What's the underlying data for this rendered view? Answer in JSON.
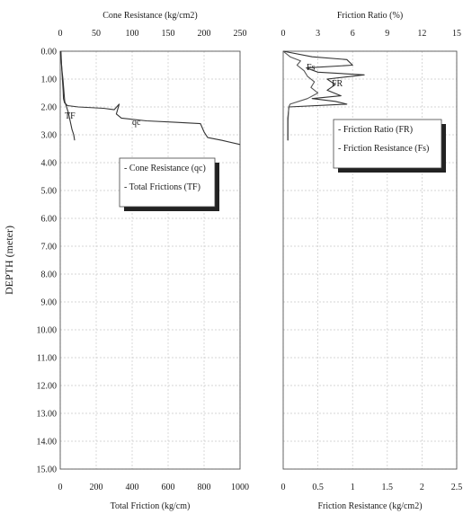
{
  "chart_data": [
    {
      "type": "line",
      "panel": "left",
      "y": {
        "label": "DEPTH (meter)",
        "ticks": [
          "0.00",
          "1.00",
          "2.00",
          "3.00",
          "4.00",
          "5.00",
          "6.00",
          "7.00",
          "8.00",
          "9.00",
          "10.00",
          "11.00",
          "12.00",
          "13.00",
          "14.00",
          "15.00"
        ],
        "ylim": [
          0,
          15
        ],
        "inverted": true
      },
      "x_top": {
        "label": "Cone Resistance (kg/cm2)",
        "ticks": [
          "0",
          "50",
          "100",
          "150",
          "200",
          "250"
        ],
        "xlim": [
          0,
          250
        ]
      },
      "x_bottom": {
        "label": "Total Friction (kg/cm)",
        "ticks": [
          "0",
          "200",
          "400",
          "600",
          "800",
          "1000"
        ],
        "xlim": [
          0,
          1000
        ]
      },
      "grid": true,
      "legend": {
        "placement": "center-left",
        "entries": [
          "- Cone Resistance (qc)",
          "- Total Frictions (TF)"
        ]
      },
      "series": [
        {
          "name": "qc",
          "axis": "top",
          "label": "qc",
          "color": "#333333",
          "points": [
            [
              1,
              0
            ],
            [
              1.5,
              0.3
            ],
            [
              2,
              0.6
            ],
            [
              3,
              1.0
            ],
            [
              4,
              1.4
            ],
            [
              4.5,
              1.7
            ],
            [
              6,
              1.85
            ],
            [
              10,
              1.95
            ],
            [
              25,
              2.0
            ],
            [
              60,
              2.05
            ],
            [
              75,
              2.1
            ],
            [
              82,
              1.9
            ],
            [
              78,
              2.25
            ],
            [
              85,
              2.4
            ],
            [
              120,
              2.5
            ],
            [
              160,
              2.55
            ],
            [
              195,
              2.6
            ],
            [
              200,
              2.9
            ],
            [
              205,
              3.1
            ],
            [
              225,
              3.2
            ],
            [
              250,
              3.35
            ]
          ]
        },
        {
          "name": "TF",
          "axis": "bottom",
          "label": "TF",
          "color": "#333333",
          "points": [
            [
              0,
              0
            ],
            [
              5,
              0.3
            ],
            [
              10,
              0.7
            ],
            [
              15,
              1.0
            ],
            [
              20,
              1.4
            ],
            [
              25,
              1.8
            ],
            [
              35,
              2.0
            ],
            [
              45,
              2.2
            ],
            [
              55,
              2.5
            ],
            [
              65,
              2.8
            ],
            [
              75,
              3.0
            ],
            [
              80,
              3.2
            ]
          ]
        }
      ]
    },
    {
      "type": "line",
      "panel": "right",
      "y": {
        "ylim": [
          0,
          15
        ],
        "inverted": true
      },
      "x_top": {
        "label": "Friction Ratio (%)",
        "ticks": [
          "0",
          "3",
          "6",
          "9",
          "12",
          "15"
        ],
        "xlim": [
          0,
          15
        ]
      },
      "x_bottom": {
        "label": "Friction Resistance (kg/cm2)",
        "ticks": [
          "0",
          "0.5",
          "1",
          "1.5",
          "2",
          "2.5"
        ],
        "xlim": [
          0,
          2.5
        ]
      },
      "grid": true,
      "legend": {
        "placement": "top-right",
        "entries": [
          "- Friction Ratio (FR)",
          "- Friction Resistance (Fs)"
        ]
      },
      "series": [
        {
          "name": "FR",
          "axis": "top",
          "label": "FR",
          "color": "#333333",
          "points": [
            [
              0,
              0
            ],
            [
              2.5,
              0.2
            ],
            [
              5.5,
              0.3
            ],
            [
              6,
              0.5
            ],
            [
              2,
              0.6
            ],
            [
              3,
              0.75
            ],
            [
              7,
              0.85
            ],
            [
              3.8,
              1.0
            ],
            [
              4.5,
              1.2
            ],
            [
              3.8,
              1.4
            ],
            [
              5,
              1.6
            ],
            [
              2.5,
              1.7
            ],
            [
              4.5,
              1.8
            ],
            [
              5.5,
              1.9
            ],
            [
              0.5,
              2.0
            ],
            [
              0.4,
              2.4
            ],
            [
              0.4,
              3.2
            ]
          ]
        },
        {
          "name": "Fs",
          "axis": "bottom",
          "label": "Fs",
          "color": "#555555",
          "points": [
            [
              0,
              0
            ],
            [
              0.1,
              0.2
            ],
            [
              0.25,
              0.35
            ],
            [
              0.2,
              0.5
            ],
            [
              0.3,
              0.7
            ],
            [
              0.35,
              0.9
            ],
            [
              0.45,
              1.1
            ],
            [
              0.4,
              1.3
            ],
            [
              0.5,
              1.5
            ],
            [
              0.35,
              1.7
            ],
            [
              0.1,
              1.9
            ],
            [
              0.08,
              2.0
            ],
            [
              0.07,
              2.5
            ],
            [
              0.07,
              3.2
            ]
          ]
        }
      ]
    }
  ]
}
